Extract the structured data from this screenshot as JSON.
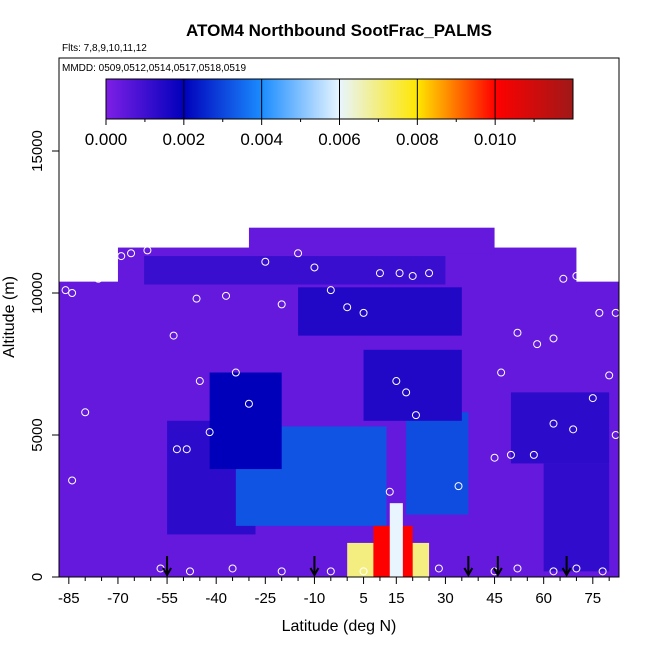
{
  "chart_data": {
    "type": "heatmap",
    "title": "ATOM4 Northbound SootFrac_PALMS",
    "flights_label": "Flts: 7,8,9,10,11,12",
    "dates_label": "MMDD: 0509,0512,0514,0517,0518,0519",
    "xlabel": "Latitude (deg N)",
    "ylabel": "Altitude (m)",
    "xlim": [
      -88,
      83
    ],
    "ylim": [
      0,
      17500
    ],
    "x_ticks": [
      -85,
      -70,
      -55,
      -40,
      -25,
      -10,
      5,
      15,
      30,
      45,
      60,
      75
    ],
    "x_tick_labels": [
      "-85",
      "-70",
      "-55",
      "-40",
      "-25",
      "-10",
      "5",
      "15",
      "30",
      "45",
      "60",
      "75"
    ],
    "y_ticks": [
      0,
      5000,
      10000,
      15000
    ],
    "y_tick_labels": [
      "0",
      "5000",
      "10000",
      "15000"
    ],
    "colorbar": {
      "min": 0,
      "max": 0.012,
      "ticks": [
        0.0,
        0.002,
        0.004,
        0.006,
        0.008,
        0.01
      ],
      "tick_labels": [
        "0.000",
        "0.002",
        "0.004",
        "0.006",
        "0.008",
        "0.010"
      ],
      "colors": [
        "#7e1fe6",
        "#0000bb",
        "#1a8cff",
        "#e8f5ff",
        "#ffe600",
        "#ff0000",
        "#a01818"
      ]
    },
    "profile_arrows_lat": [
      -55,
      -10,
      37,
      46,
      67
    ],
    "heatmap_regions": [
      {
        "lat": [
          -88,
          83
        ],
        "alt": [
          0,
          10400
        ],
        "value": 0.0004
      },
      {
        "lat": [
          -70,
          70
        ],
        "alt": [
          10000,
          11600
        ],
        "value": 0.0004
      },
      {
        "lat": [
          -30,
          45
        ],
        "alt": [
          11400,
          12300
        ],
        "value": 0.0004
      },
      {
        "lat": [
          -62,
          30
        ],
        "alt": [
          10300,
          11300
        ],
        "value": 0.0011
      },
      {
        "lat": [
          -15,
          35
        ],
        "alt": [
          8500,
          10200
        ],
        "value": 0.0015
      },
      {
        "lat": [
          -55,
          -28
        ],
        "alt": [
          1500,
          5500
        ],
        "value": 0.0013
      },
      {
        "lat": [
          -34,
          12
        ],
        "alt": [
          1800,
          5300
        ],
        "value": 0.0032
      },
      {
        "lat": [
          -42,
          -20
        ],
        "alt": [
          3800,
          7200
        ],
        "value": 0.002
      },
      {
        "lat": [
          18,
          37
        ],
        "alt": [
          2200,
          5800
        ],
        "value": 0.0031
      },
      {
        "lat": [
          5,
          35
        ],
        "alt": [
          5500,
          8000
        ],
        "value": 0.0015
      },
      {
        "lat": [
          50,
          80
        ],
        "alt": [
          4000,
          6500
        ],
        "value": 0.0013
      },
      {
        "lat": [
          60,
          80
        ],
        "alt": [
          200,
          4000
        ],
        "value": 0.0012
      },
      {
        "lat": [
          0,
          25
        ],
        "alt": [
          0,
          1200
        ],
        "value": 0.007
      },
      {
        "lat": [
          8,
          20
        ],
        "alt": [
          0,
          1800
        ],
        "value": 0.01
      },
      {
        "lat": [
          13,
          17
        ],
        "alt": [
          0,
          2600
        ],
        "value": 0.006
      }
    ],
    "sample_points": [
      {
        "lat": -86,
        "alt": 10100
      },
      {
        "lat": -84,
        "alt": 10000
      },
      {
        "lat": -84,
        "alt": 3400
      },
      {
        "lat": -80,
        "alt": 5800
      },
      {
        "lat": -76,
        "alt": 10500
      },
      {
        "lat": -74,
        "alt": 10700
      },
      {
        "lat": -69,
        "alt": 11300
      },
      {
        "lat": -66,
        "alt": 11400
      },
      {
        "lat": -61,
        "alt": 11500
      },
      {
        "lat": -57,
        "alt": 300
      },
      {
        "lat": -53,
        "alt": 8500
      },
      {
        "lat": -52,
        "alt": 4500
      },
      {
        "lat": -49,
        "alt": 4500
      },
      {
        "lat": -46,
        "alt": 9800
      },
      {
        "lat": -45,
        "alt": 6900
      },
      {
        "lat": -42,
        "alt": 5100
      },
      {
        "lat": -37,
        "alt": 9900
      },
      {
        "lat": -34,
        "alt": 7200
      },
      {
        "lat": -30,
        "alt": 6100
      },
      {
        "lat": -25,
        "alt": 11100
      },
      {
        "lat": -20,
        "alt": 9600
      },
      {
        "lat": -15,
        "alt": 11400
      },
      {
        "lat": -10,
        "alt": 10900
      },
      {
        "lat": -5,
        "alt": 10100
      },
      {
        "lat": 0,
        "alt": 9500
      },
      {
        "lat": 5,
        "alt": 9300
      },
      {
        "lat": 10,
        "alt": 10700
      },
      {
        "lat": 16,
        "alt": 10700
      },
      {
        "lat": 20,
        "alt": 10600
      },
      {
        "lat": 25,
        "alt": 10700
      },
      {
        "lat": 15,
        "alt": 6900
      },
      {
        "lat": 18,
        "alt": 6500
      },
      {
        "lat": 21,
        "alt": 5700
      },
      {
        "lat": 13,
        "alt": 3000
      },
      {
        "lat": 34,
        "alt": 3200
      },
      {
        "lat": 47,
        "alt": 7200
      },
      {
        "lat": 52,
        "alt": 8600
      },
      {
        "lat": 58,
        "alt": 8200
      },
      {
        "lat": 63,
        "alt": 8400
      },
      {
        "lat": 66,
        "alt": 10500
      },
      {
        "lat": 70,
        "alt": 10600
      },
      {
        "lat": 77,
        "alt": 9300
      },
      {
        "lat": 82,
        "alt": 9300
      },
      {
        "lat": 75,
        "alt": 6300
      },
      {
        "lat": 80,
        "alt": 7100
      },
      {
        "lat": 82,
        "alt": 5000
      },
      {
        "lat": 63,
        "alt": 5400
      },
      {
        "lat": 69,
        "alt": 5200
      },
      {
        "lat": 50,
        "alt": 4300
      },
      {
        "lat": 57,
        "alt": 4300
      },
      {
        "lat": 45,
        "alt": 4200
      },
      {
        "lat": -48,
        "alt": 200
      },
      {
        "lat": -35,
        "alt": 300
      },
      {
        "lat": -20,
        "alt": 200
      },
      {
        "lat": -5,
        "alt": 200
      },
      {
        "lat": 5,
        "alt": 200
      },
      {
        "lat": 28,
        "alt": 300
      },
      {
        "lat": 45,
        "alt": 200
      },
      {
        "lat": 52,
        "alt": 300
      },
      {
        "lat": 63,
        "alt": 200
      },
      {
        "lat": 70,
        "alt": 300
      },
      {
        "lat": 78,
        "alt": 200
      }
    ]
  }
}
